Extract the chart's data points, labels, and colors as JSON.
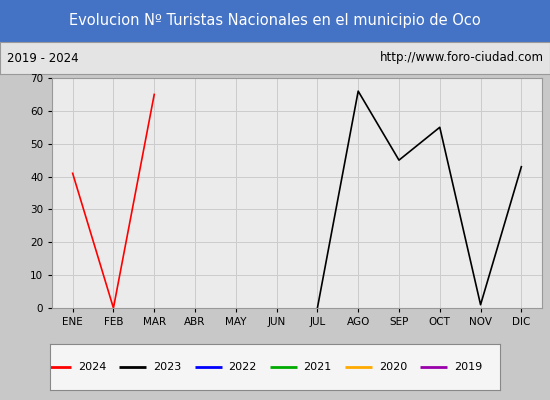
{
  "title": "Evolucion Nº Turistas Nacionales en el municipio de Oco",
  "subtitle_left": "2019 - 2024",
  "subtitle_right": "http://www.foro-ciudad.com",
  "x_labels": [
    "ENE",
    "FEB",
    "MAR",
    "ABR",
    "MAY",
    "JUN",
    "JUL",
    "AGO",
    "SEP",
    "OCT",
    "NOV",
    "DIC"
  ],
  "ylim": [
    0,
    70
  ],
  "yticks": [
    0,
    10,
    20,
    30,
    40,
    50,
    60,
    70
  ],
  "series": {
    "2024": {
      "color": "#ff0000",
      "data": [
        41,
        0,
        65,
        null,
        null,
        null,
        null,
        null,
        null,
        null,
        null,
        null
      ]
    },
    "2023": {
      "color": "#000000",
      "data": [
        null,
        null,
        null,
        null,
        null,
        null,
        0,
        66,
        45,
        55,
        1,
        43
      ]
    },
    "2022": {
      "color": "#0000ff",
      "data": [
        null,
        null,
        null,
        null,
        null,
        null,
        null,
        null,
        null,
        null,
        null,
        null
      ]
    },
    "2021": {
      "color": "#00aa00",
      "data": [
        null,
        null,
        null,
        null,
        null,
        null,
        null,
        null,
        null,
        null,
        null,
        null
      ]
    },
    "2020": {
      "color": "#ffaa00",
      "data": [
        null,
        null,
        null,
        null,
        null,
        null,
        null,
        null,
        null,
        null,
        null,
        null
      ]
    },
    "2019": {
      "color": "#9900aa",
      "data": [
        null,
        null,
        null,
        null,
        null,
        null,
        null,
        null,
        null,
        null,
        null,
        null
      ]
    }
  },
  "title_bg_color": "#4472c4",
  "title_font_color": "#ffffff",
  "title_fontsize": 10.5,
  "plot_bg_color": "#ebebeb",
  "grid_color": "#cccccc",
  "subtitle_bg_color": "#e4e4e4",
  "border_color": "#999999",
  "fig_bg_color": "#c8c8c8",
  "legend_bg_color": "#f5f5f5"
}
